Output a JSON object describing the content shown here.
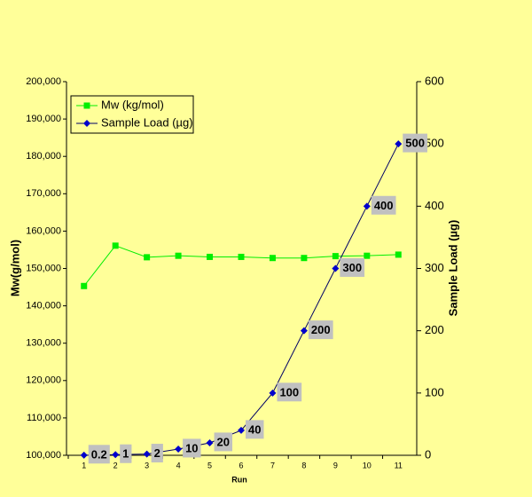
{
  "chart_data": {
    "type": "line",
    "categories": [
      "1",
      "2",
      "3",
      "4",
      "5",
      "6",
      "7",
      "8",
      "9",
      "10",
      "11"
    ],
    "x_label": "Run",
    "y_label": "Mw(g/mol)",
    "y2_label": "Sample Load (µg)",
    "series": [
      {
        "name": "Mw (kg/mol)",
        "color": "#00ee00",
        "marker": "square",
        "values": [
          145300,
          156100,
          153000,
          153400,
          153100,
          153100,
          152800,
          152800,
          153300,
          153400,
          153700
        ]
      },
      {
        "name": "Sample Load (µg)",
        "color": "#0000cc",
        "line_color": "#000066",
        "marker": "diamond",
        "axis": "y2",
        "values": [
          0.2,
          1,
          2,
          10,
          20,
          40,
          100,
          200,
          300,
          400,
          500
        ],
        "data_labels": true
      }
    ],
    "ylim": [
      100000,
      200000
    ],
    "yticks": [
      {
        "value": 100000,
        "label": "100,000"
      },
      {
        "value": 110000,
        "label": "110,000"
      },
      {
        "value": 120000,
        "label": "120,000"
      },
      {
        "value": 130000,
        "label": "130,000"
      },
      {
        "value": 140000,
        "label": "140,000"
      },
      {
        "value": 150000,
        "label": "150,000"
      },
      {
        "value": 160000,
        "label": "160,000"
      },
      {
        "value": 170000,
        "label": "170,000"
      },
      {
        "value": 180000,
        "label": "180,000"
      },
      {
        "value": 190000,
        "label": "190,000"
      },
      {
        "value": 200000,
        "label": "200,000"
      }
    ],
    "y2lim": [
      0,
      600
    ],
    "y2ticks": [
      0,
      100,
      200,
      300,
      400,
      500,
      600
    ],
    "legend": "upper-left",
    "background": "#ffff99"
  }
}
